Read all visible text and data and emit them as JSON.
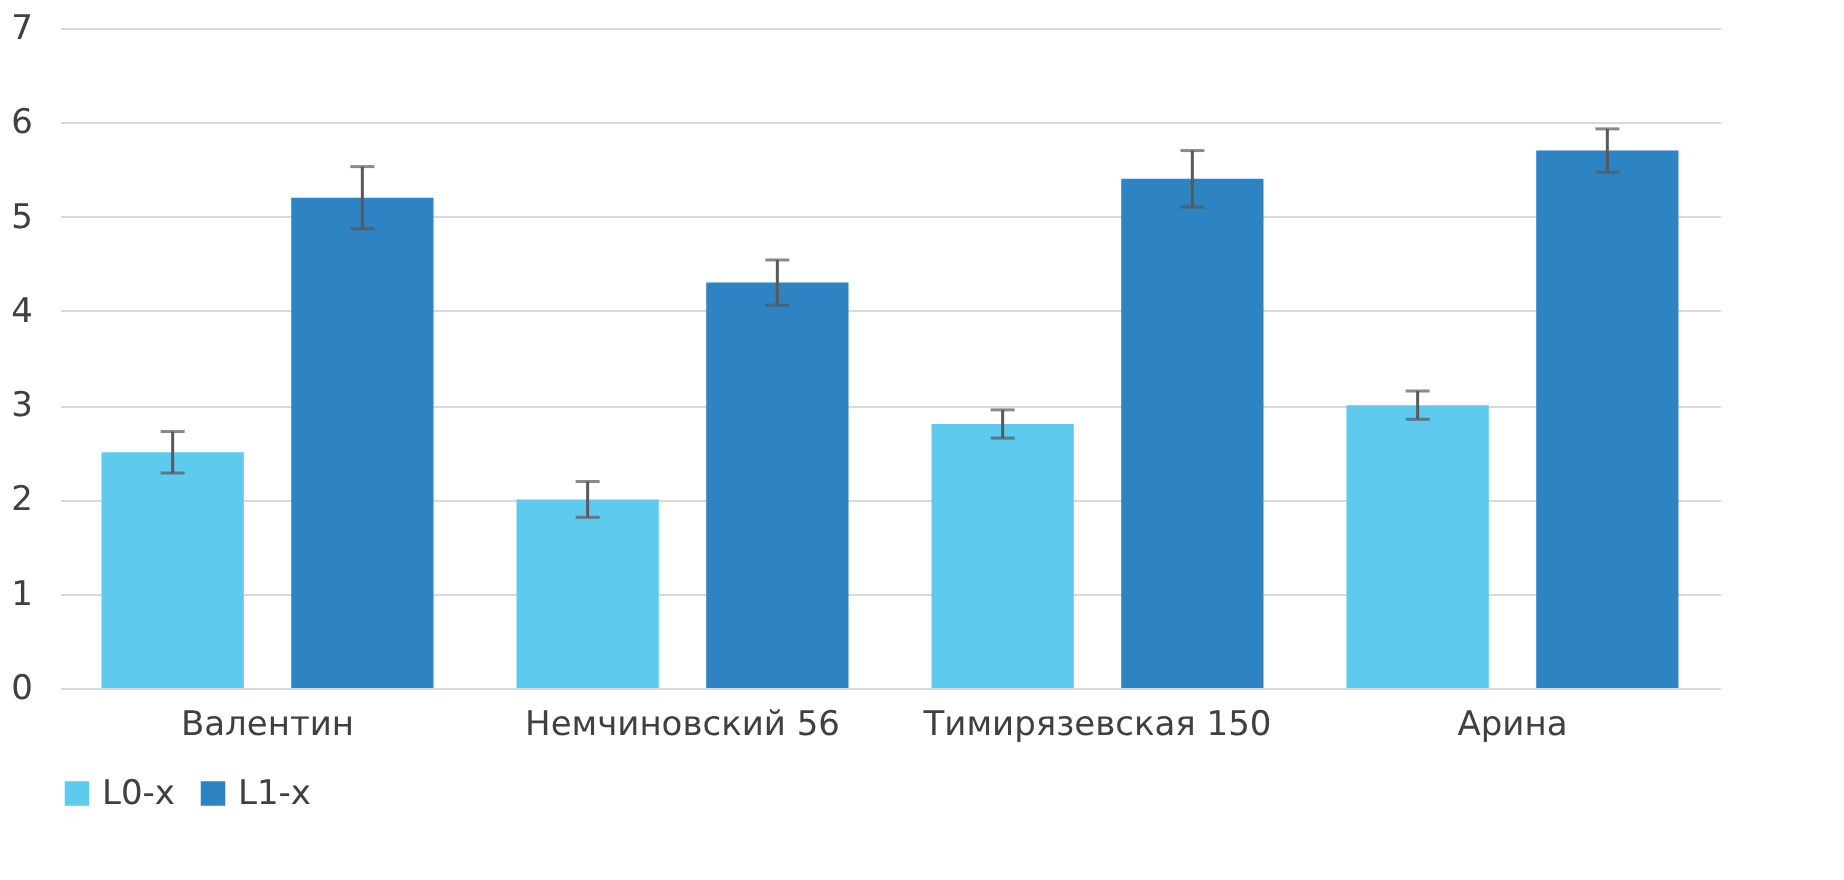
{
  "chart_data": {
    "type": "bar",
    "categories": [
      "Валентин",
      "Немчиновский 56",
      "Тимирязевская 150",
      "Арина"
    ],
    "series": [
      {
        "name": "L0-x",
        "color": "#5ecbee",
        "values": [
          2.5,
          2.0,
          2.8,
          3.0
        ],
        "errors": [
          0.22,
          0.19,
          0.15,
          0.15
        ]
      },
      {
        "name": "L1-x",
        "color": "#2e83c3",
        "values": [
          5.2,
          4.3,
          5.4,
          5.7
        ],
        "errors": [
          0.33,
          0.24,
          0.3,
          0.23
        ]
      }
    ],
    "ylim": [
      0,
      7
    ],
    "yticks": [
      0,
      1,
      2,
      3,
      4,
      5,
      6,
      7
    ],
    "grid": "y",
    "legend": "bottom"
  }
}
